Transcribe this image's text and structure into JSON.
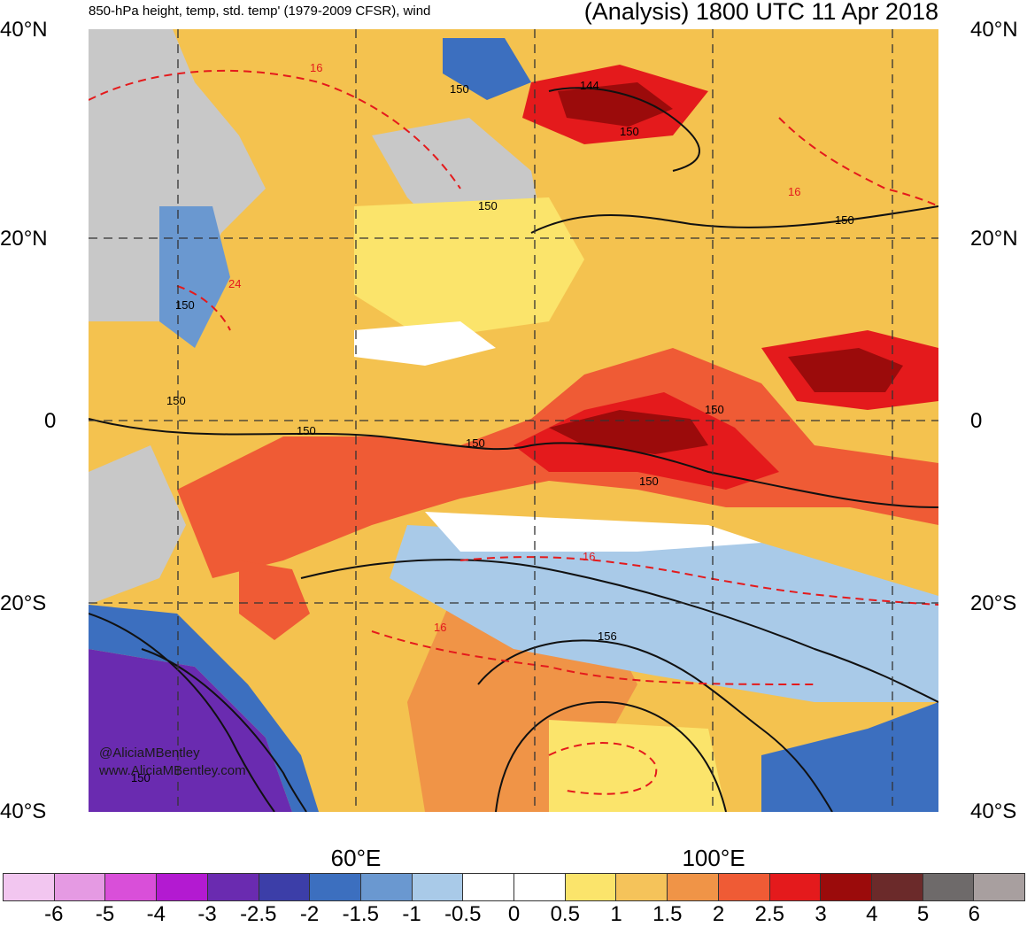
{
  "header": {
    "left_title": "850-hPa height, temp, std. temp' (1979-2009 CFSR), wind",
    "right_title": "(Analysis) 1800 UTC 11 Apr 2018"
  },
  "axes": {
    "lat_labels": [
      "40°N",
      "20°N",
      "0",
      "20°S",
      "40°S"
    ],
    "lon_labels": [
      "60°E",
      "100°E"
    ]
  },
  "contour_labels": [
    "16",
    "150",
    "144",
    "150",
    "150",
    "16",
    "150",
    "24",
    "150",
    "150",
    "150",
    "150",
    "150",
    "150",
    "16",
    "16",
    "156",
    "150"
  ],
  "credit": {
    "handle": "@AliciaMBentley",
    "site": "www.AliciaMBentley.com"
  },
  "colorbar": {
    "colors": [
      "#f2c6f0",
      "#e59ae3",
      "#d94fd9",
      "#b31ad1",
      "#6a2bb0",
      "#3c3ea8",
      "#3c6fbf",
      "#6a98d0",
      "#a9cae8",
      "#ffffff",
      "#ffffff",
      "#fbe46b",
      "#f5c35a",
      "#f09447",
      "#ef5b35",
      "#e41a1c",
      "#9b0b0b",
      "#6b2a2a",
      "#6e6a6a",
      "#a89f9f"
    ],
    "labels": [
      "-6",
      "-5",
      "-4",
      "-3",
      "-2.5",
      "-2",
      "-1.5",
      "-1",
      "-0.5",
      "0",
      "0.5",
      "1",
      "1.5",
      "2",
      "2.5",
      "3",
      "4",
      "5",
      "6"
    ]
  }
}
